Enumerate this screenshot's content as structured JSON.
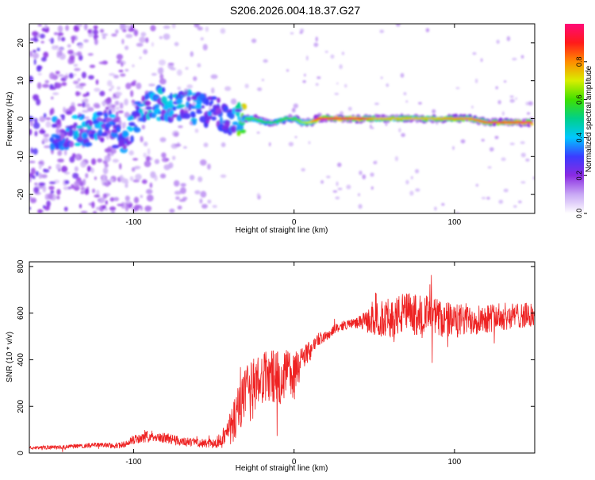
{
  "title": "S206.2026.004.18.37.G27",
  "chart_data": [
    {
      "type": "heatmap",
      "title": "S206.2026.004.18.37.G27",
      "xlabel": "Height of straight line (km)",
      "ylabel": "Frequency (Hz)",
      "xlim": [
        -165,
        150
      ],
      "ylim": [
        -25,
        25
      ],
      "xticks": [
        -100,
        0,
        100
      ],
      "yticks": [
        -20,
        -10,
        0,
        10,
        20
      ],
      "xtick_labels": [
        "-100",
        "0",
        "100"
      ],
      "ytick_labels": [
        "-20",
        "-10",
        "0",
        "10",
        "20"
      ],
      "colorbar": {
        "label": "Normalized spectral amplitude",
        "range": [
          0,
          1
        ],
        "ticks": [
          0.0,
          0.2,
          0.4,
          0.6,
          0.8
        ],
        "tick_labels": [
          "0.0",
          "0.2",
          "0.4",
          "0.6",
          "0.8"
        ],
        "colors": [
          "#ffffff",
          "#c9a9f5",
          "#8a2be2",
          "#3b3bff",
          "#00c8ff",
          "#00d08a",
          "#3fe000",
          "#d8ee00",
          "#ff8c00",
          "#ff1a1a",
          "#ff0a78"
        ]
      },
      "ridge": {
        "description_free": true,
        "x": [
          -145,
          -130,
          -115,
          -108,
          -100,
          -92,
          -85,
          -75,
          -65,
          -55,
          -45,
          -38,
          -32,
          -25,
          -18,
          -12,
          -5,
          0,
          5,
          10,
          15,
          20,
          40,
          50,
          60,
          70,
          80,
          90,
          100,
          110,
          120,
          130,
          140,
          148
        ],
        "freq": [
          -4,
          -3,
          -2,
          -5,
          -1,
          3,
          4,
          3,
          3,
          2,
          1,
          0,
          0,
          0,
          -1,
          -1,
          0,
          0,
          -1,
          -1,
          0,
          0,
          0,
          0,
          0,
          0,
          0,
          0,
          0,
          0,
          -1,
          -1,
          -1,
          -1
        ],
        "strength": [
          0.3,
          0.35,
          0.3,
          0.35,
          0.35,
          0.35,
          0.35,
          0.35,
          0.35,
          0.3,
          0.3,
          0.3,
          0.6,
          0.6,
          0.55,
          0.55,
          0.6,
          0.6,
          0.65,
          0.7,
          0.9,
          0.95,
          0.95,
          0.75,
          0.75,
          0.75,
          0.75,
          0.75,
          0.8,
          0.8,
          0.85,
          0.9,
          0.95,
          0.95
        ]
      }
    },
    {
      "type": "line",
      "title": "",
      "xlabel": "Height of straight line (km)",
      "ylabel": "SNR (10 * v/v)",
      "xlim": [
        -165,
        150
      ],
      "ylim": [
        0,
        820
      ],
      "xticks": [
        -100,
        0,
        100
      ],
      "yticks": [
        0,
        200,
        400,
        600,
        800
      ],
      "xtick_labels": [
        "-100",
        "0",
        "100"
      ],
      "ytick_labels": [
        "0",
        "200",
        "400",
        "600",
        "800"
      ],
      "series": [
        {
          "name": "SNR",
          "color": "#ee2222",
          "x": [
            -165,
            -150,
            -135,
            -120,
            -110,
            -100,
            -90,
            -80,
            -70,
            -60,
            -50,
            -45,
            -40,
            -35,
            -30,
            -25,
            -20,
            -15,
            -10,
            -5,
            0,
            5,
            10,
            15,
            20,
            25,
            30,
            35,
            40,
            45,
            50,
            55,
            60,
            65,
            70,
            75,
            80,
            85,
            90,
            95,
            100,
            110,
            120,
            130,
            140,
            150
          ],
          "values": [
            22,
            25,
            30,
            35,
            30,
            55,
            75,
            65,
            50,
            45,
            40,
            60,
            100,
            180,
            240,
            280,
            310,
            330,
            320,
            340,
            330,
            400,
            440,
            490,
            500,
            530,
            545,
            555,
            560,
            565,
            570,
            575,
            580,
            590,
            600,
            590,
            600,
            585,
            580,
            570,
            565,
            575,
            580,
            585,
            590,
            590
          ],
          "noise": [
            8,
            8,
            10,
            10,
            12,
            20,
            25,
            22,
            20,
            18,
            20,
            40,
            80,
            110,
            130,
            130,
            120,
            110,
            120,
            110,
            110,
            60,
            45,
            30,
            25,
            20,
            20,
            20,
            25,
            45,
            70,
            80,
            85,
            90,
            95,
            90,
            90,
            85,
            85,
            80,
            75,
            70,
            65,
            60,
            55,
            55
          ]
        }
      ]
    }
  ]
}
